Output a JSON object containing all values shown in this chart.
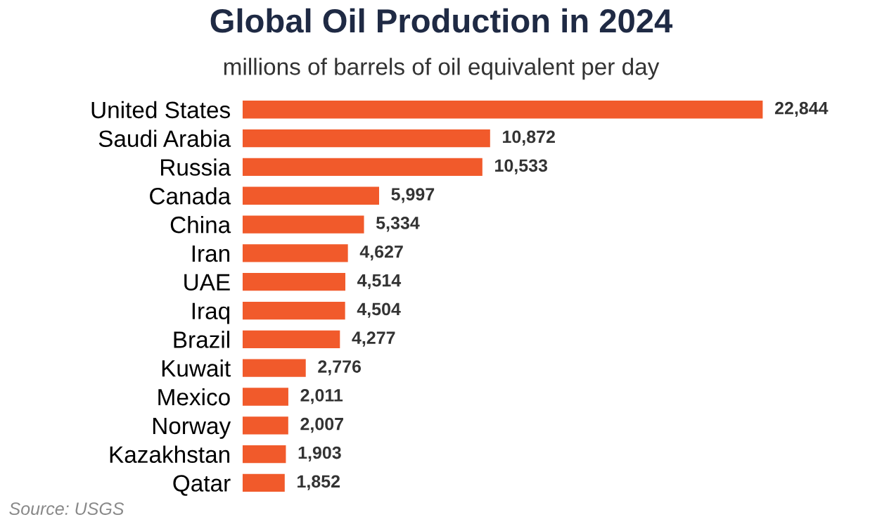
{
  "chart_data": {
    "type": "bar",
    "orientation": "horizontal",
    "title": "Global Oil Production in 2024",
    "subtitle": "millions of barrels of oil equivalent per day",
    "categories": [
      "United States",
      "Saudi Arabia",
      "Russia",
      "Canada",
      "China",
      "Iran",
      "UAE",
      "Iraq",
      "Brazil",
      "Kuwait",
      "Mexico",
      "Norway",
      "Kazakhstan",
      "Qatar"
    ],
    "values": [
      22844,
      10872,
      10533,
      5997,
      5334,
      4627,
      4514,
      4504,
      4277,
      2776,
      2011,
      2007,
      1903,
      1852
    ],
    "value_labels": [
      "22,844",
      "10,872",
      "10,533",
      "5,997",
      "5,334",
      "4,627",
      "4,514",
      "4,504",
      "4,277",
      "2,776",
      "2,011",
      "2,007",
      "1,903",
      "1,852"
    ],
    "color": "#f15a2b",
    "tick_labels": "y",
    "grid": false,
    "legend": false,
    "annotations": [
      "Source: USGS"
    ]
  }
}
